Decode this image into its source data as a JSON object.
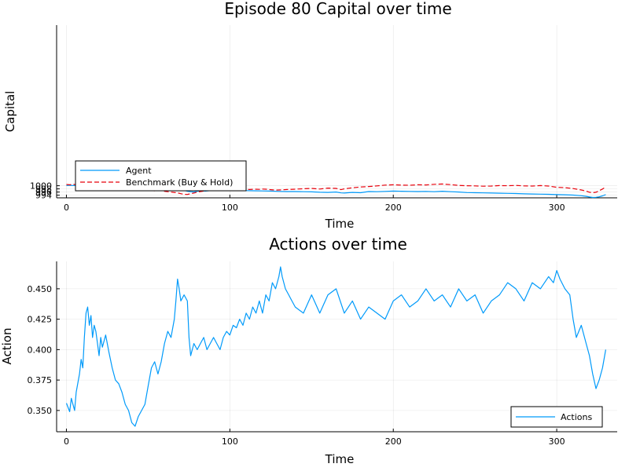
{
  "chart_data": [
    {
      "type": "line",
      "title": "Episode 80 Capital over time",
      "xlabel": "Time",
      "ylabel": "Capital",
      "xlim": [
        -6,
        337
      ],
      "ylim": [
        992.35,
        1101.6
      ],
      "xticks": [
        0,
        100,
        200,
        300
      ],
      "xtick_labels": [
        "0",
        "100",
        "200",
        "300"
      ],
      "yticks": [
        994,
        996,
        998,
        1000
      ],
      "ytick_labels": [
        "994",
        "996",
        "998",
        "1000"
      ],
      "grid": true,
      "legend_position": "bottom-left",
      "series": [
        {
          "name": "Agent",
          "color": "#009AFA",
          "dash": "solid",
          "x": [
            0,
            2,
            4,
            6,
            8,
            10,
            12,
            15,
            18,
            20,
            24,
            28,
            32,
            36,
            38,
            40,
            42,
            45,
            48,
            52,
            55,
            58,
            60,
            62,
            65,
            68,
            70,
            72,
            74,
            76,
            78,
            80,
            82,
            85,
            88,
            90,
            93,
            96,
            98,
            100,
            105,
            110,
            115,
            120,
            125,
            130,
            135,
            140,
            145,
            150,
            155,
            160,
            165,
            168,
            170,
            175,
            180,
            185,
            190,
            195,
            200,
            205,
            210,
            215,
            220,
            225,
            230,
            235,
            240,
            245,
            250,
            255,
            260,
            265,
            270,
            275,
            280,
            285,
            290,
            295,
            300,
            305,
            310,
            315,
            318,
            320,
            322,
            324,
            326,
            328,
            330
          ],
          "y": [
            1000.1,
            1000.3,
            1000.1,
            1000.2,
            1000.0,
            999.9,
            999.6,
            999.3,
            999.0,
            998.8,
            998.7,
            998.6,
            998.5,
            998.2,
            998.5,
            998.6,
            998.9,
            998.8,
            998.4,
            998.3,
            998.1,
            998.0,
            998.1,
            997.9,
            997.7,
            997.5,
            997.3,
            997.0,
            996.5,
            996.2,
            996.0,
            996.5,
            996.7,
            996.6,
            996.9,
            997.0,
            997.1,
            997.2,
            997.3,
            997.4,
            997.1,
            996.9,
            996.8,
            996.7,
            996.6,
            996.4,
            996.3,
            996.3,
            996.2,
            996.1,
            995.9,
            995.8,
            996.0,
            995.5,
            995.4,
            995.8,
            995.6,
            996.3,
            996.2,
            996.4,
            996.6,
            996.5,
            996.4,
            996.3,
            996.4,
            996.2,
            996.5,
            996.2,
            996.0,
            995.7,
            995.6,
            995.5,
            995.4,
            995.3,
            995.2,
            995.1,
            994.9,
            994.8,
            994.7,
            994.6,
            994.4,
            994.3,
            994.1,
            993.7,
            993.3,
            992.9,
            992.6,
            992.7,
            993.0,
            993.6,
            994.4
          ]
        },
        {
          "name": "Benchmark (Buy & Hold)",
          "color": "#E8000B",
          "dash": "dashed",
          "x": [
            0,
            2,
            4,
            6,
            8,
            10,
            12,
            14,
            16,
            18,
            20,
            24,
            28,
            30,
            32,
            34,
            36,
            38,
            40,
            42,
            45,
            48,
            50,
            52,
            55,
            58,
            60,
            62,
            65,
            68,
            70,
            72,
            74,
            76,
            78,
            80,
            82,
            85,
            88,
            90,
            92,
            94,
            96,
            98,
            100,
            105,
            110,
            112,
            115,
            118,
            120,
            122,
            125,
            128,
            130,
            135,
            140,
            145,
            150,
            155,
            160,
            165,
            168,
            170,
            175,
            180,
            185,
            190,
            195,
            200,
            205,
            210,
            215,
            220,
            225,
            230,
            235,
            240,
            245,
            250,
            255,
            260,
            265,
            270,
            275,
            280,
            285,
            290,
            295,
            300,
            305,
            310,
            315,
            318,
            320,
            322,
            324,
            326,
            328,
            330
          ],
          "y": [
            1000.8,
            1000.6,
            1000.9,
            1000.7,
            1000.3,
            1000.0,
            999.4,
            999.0,
            998.6,
            998.3,
            998.1,
            997.8,
            997.3,
            997.0,
            996.9,
            997.5,
            998.2,
            998.0,
            998.2,
            997.8,
            998.0,
            997.7,
            997.2,
            996.9,
            996.7,
            997.3,
            996.5,
            996.2,
            995.9,
            995.5,
            995.0,
            994.6,
            994.5,
            995.0,
            995.4,
            995.9,
            996.3,
            996.8,
            997.3,
            997.6,
            997.8,
            998.0,
            998.0,
            998.2,
            998.3,
            998.0,
            997.8,
            997.6,
            997.8,
            997.7,
            997.9,
            997.8,
            997.5,
            997.2,
            997.3,
            997.6,
            997.8,
            998.1,
            998.3,
            997.9,
            998.5,
            998.3,
            997.5,
            998.0,
            998.7,
            999.2,
            999.5,
            999.9,
            1000.4,
            1000.6,
            1000.4,
            1000.3,
            1000.6,
            1000.5,
            1000.9,
            1001.1,
            1000.7,
            1000.2,
            1000.0,
            999.9,
            999.7,
            999.8,
            1000.1,
            1000.0,
            1000.2,
            999.9,
            999.8,
            1000.1,
            999.8,
            999.0,
            998.8,
            998.2,
            997.3,
            996.6,
            995.9,
            995.6,
            995.9,
            996.8,
            997.9,
            999.2
          ]
        }
      ]
    },
    {
      "type": "line",
      "title": "Actions over time",
      "xlabel": "Time",
      "ylabel": "Action",
      "xlim": [
        -6,
        337
      ],
      "ylim": [
        0.3325,
        0.4725
      ],
      "xticks": [
        0,
        100,
        200,
        300
      ],
      "xtick_labels": [
        "0",
        "100",
        "200",
        "300"
      ],
      "yticks": [
        0.35,
        0.375,
        0.4,
        0.425,
        0.45
      ],
      "ytick_labels": [
        "0.350",
        "0.375",
        "0.400",
        "0.425",
        "0.450"
      ],
      "grid": true,
      "legend_position": "bottom-right",
      "series": [
        {
          "name": "Actions",
          "color": "#009AFA",
          "dash": "solid",
          "x": [
            0,
            2,
            3,
            5,
            6,
            8,
            9,
            10,
            11,
            12,
            13,
            14,
            15,
            16,
            17,
            18,
            19,
            20,
            21,
            22,
            24,
            26,
            28,
            30,
            32,
            34,
            36,
            38,
            40,
            42,
            44,
            46,
            48,
            50,
            52,
            54,
            56,
            58,
            60,
            62,
            64,
            66,
            67,
            68,
            69,
            70,
            72,
            74,
            75,
            76,
            78,
            80,
            82,
            84,
            86,
            88,
            90,
            92,
            94,
            96,
            98,
            100,
            102,
            104,
            106,
            108,
            110,
            112,
            114,
            116,
            118,
            120,
            122,
            124,
            126,
            128,
            130,
            131,
            132,
            134,
            136,
            138,
            140,
            145,
            150,
            155,
            160,
            165,
            170,
            175,
            180,
            185,
            190,
            195,
            200,
            205,
            210,
            215,
            220,
            225,
            230,
            235,
            240,
            245,
            250,
            255,
            260,
            265,
            270,
            275,
            280,
            285,
            290,
            295,
            298,
            300,
            302,
            305,
            308,
            310,
            312,
            315,
            318,
            320,
            322,
            324,
            326,
            328,
            330
          ],
          "y": [
            0.356,
            0.349,
            0.36,
            0.35,
            0.365,
            0.38,
            0.392,
            0.385,
            0.41,
            0.43,
            0.435,
            0.42,
            0.428,
            0.41,
            0.42,
            0.415,
            0.405,
            0.395,
            0.41,
            0.402,
            0.412,
            0.398,
            0.385,
            0.375,
            0.372,
            0.365,
            0.355,
            0.35,
            0.34,
            0.337,
            0.345,
            0.35,
            0.355,
            0.37,
            0.385,
            0.39,
            0.38,
            0.39,
            0.405,
            0.415,
            0.41,
            0.425,
            0.44,
            0.458,
            0.45,
            0.44,
            0.445,
            0.44,
            0.41,
            0.395,
            0.405,
            0.4,
            0.405,
            0.41,
            0.4,
            0.405,
            0.41,
            0.405,
            0.4,
            0.41,
            0.415,
            0.412,
            0.42,
            0.418,
            0.425,
            0.42,
            0.43,
            0.425,
            0.435,
            0.43,
            0.44,
            0.43,
            0.445,
            0.44,
            0.455,
            0.45,
            0.46,
            0.468,
            0.46,
            0.45,
            0.445,
            0.44,
            0.435,
            0.43,
            0.445,
            0.43,
            0.445,
            0.45,
            0.43,
            0.44,
            0.425,
            0.435,
            0.43,
            0.425,
            0.44,
            0.445,
            0.435,
            0.44,
            0.45,
            0.44,
            0.445,
            0.435,
            0.45,
            0.44,
            0.445,
            0.43,
            0.44,
            0.445,
            0.455,
            0.45,
            0.44,
            0.455,
            0.45,
            0.46,
            0.455,
            0.465,
            0.458,
            0.45,
            0.445,
            0.425,
            0.41,
            0.42,
            0.405,
            0.395,
            0.38,
            0.368,
            0.375,
            0.385,
            0.4
          ]
        }
      ]
    }
  ]
}
